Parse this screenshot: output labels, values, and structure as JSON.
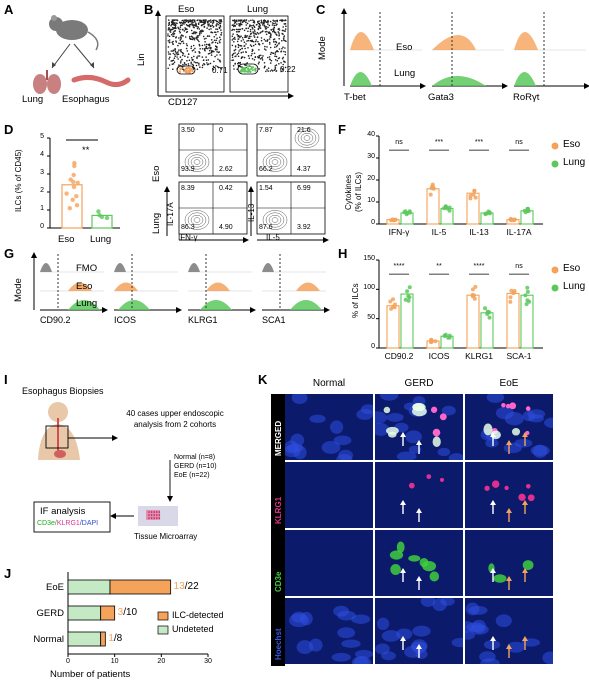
{
  "colors": {
    "eso": "#f5a25a",
    "lung": "#5cc85c",
    "grey": "#8c8c8c",
    "micro_bg": "#0b1a6b",
    "merged": "#ffffff",
    "klrg1": "#e0308f",
    "cd3e": "#3fcf3f",
    "hoechst": "#3a56e8"
  },
  "panels": {
    "A": "A",
    "B": "B",
    "C": "C",
    "D": "D",
    "E": "E",
    "F": "F",
    "G": "G",
    "H": "H",
    "I": "I",
    "J": "J",
    "K": "K"
  },
  "a": {
    "lung": "Lung",
    "esophagus": "Esophagus",
    "icons": [
      "mouse-icon",
      "lung-icon",
      "esophagus-icon"
    ]
  },
  "b": {
    "eso": "Eso",
    "lung": "Lung",
    "ylabel": "Lin",
    "xlabel": "CD127",
    "gate_eso": "0.71",
    "gate_lung": "0.22"
  },
  "c": {
    "ylabel": "Mode",
    "eso": "Eso",
    "lung": "Lung",
    "x1": "T-bet",
    "x2": "Gata3",
    "x3": "RoRγt"
  },
  "d": {
    "ylabel": "ILCs (% of CD45)",
    "sig": "**",
    "categories": [
      "Eso",
      "Lung"
    ],
    "values": [
      2.4,
      0.7
    ],
    "ticks": [
      "0",
      "1",
      "2",
      "3",
      "4",
      "5"
    ]
  },
  "e": {
    "row1": "Eso",
    "row2": "Lung",
    "y1": "IL-17A",
    "y2": "IL-13",
    "x1": "IFN-γ",
    "x2": "IL-5",
    "q": {
      "eso_l_ul": "3.50",
      "eso_l_ur": "0",
      "eso_l_ll": "93.9",
      "eso_l_lr": "2.62",
      "eso_r_ul": "7.87",
      "eso_r_ur": "21.6",
      "eso_r_ll": "66.2",
      "eso_r_lr": "4.37",
      "lung_l_ul": "8.39",
      "lung_l_ur": "0.42",
      "lung_l_ll": "86.3",
      "lung_l_lr": "4.90",
      "lung_r_ul": "1.54",
      "lung_r_ur": "6.99",
      "lung_r_ll": "87.6",
      "lung_r_lr": "3.92"
    }
  },
  "f": {
    "ylabel1": "Cytokines",
    "ylabel2": "(% of ILCs)",
    "ticks": [
      "0",
      "10",
      "20",
      "30",
      "40"
    ],
    "categories": [
      "IFN-γ",
      "IL-5",
      "IL-13",
      "IL-17A"
    ],
    "sig": [
      "ns",
      "***",
      "***",
      "ns"
    ],
    "legend": [
      "Eso",
      "Lung"
    ],
    "chart_data": {
      "type": "bar",
      "categories": [
        "IFN-γ",
        "IL-5",
        "IL-13",
        "IL-17A"
      ],
      "series": [
        {
          "name": "Eso",
          "values": [
            2,
            16,
            14,
            2
          ]
        },
        {
          "name": "Lung",
          "values": [
            5,
            7,
            5,
            6
          ]
        }
      ],
      "ylim": [
        0,
        40
      ]
    }
  },
  "g": {
    "ylabel": "Mode",
    "fmo": "FMO",
    "eso": "Eso",
    "lung": "Lung",
    "x": [
      "CD90.2",
      "ICOS",
      "KLRG1",
      "SCA1"
    ]
  },
  "h": {
    "ylabel": "% of ILCs",
    "ticks": [
      "0",
      "50",
      "100",
      "150"
    ],
    "categories": [
      "CD90.2",
      "ICOS",
      "KLRG1",
      "SCA-1"
    ],
    "sig": [
      "****",
      "**",
      "****",
      "ns"
    ],
    "legend": [
      "Eso",
      "Lung"
    ],
    "chart_data": {
      "type": "bar",
      "categories": [
        "CD90.2",
        "ICOS",
        "KLRG1",
        "SCA-1"
      ],
      "series": [
        {
          "name": "Eso",
          "values": [
            72,
            12,
            90,
            93
          ]
        },
        {
          "name": "Lung",
          "values": [
            92,
            20,
            60,
            90
          ]
        }
      ],
      "ylim": [
        0,
        150
      ]
    }
  },
  "i": {
    "title": "Esophagus Biopsies",
    "cases": "40 cases upper endoscopic analysis from 2 cohorts",
    "normal": "Normal (n=8)",
    "gerd": "GERD (n=10)",
    "eoe": "EoE (n=22)",
    "if": "IF analysis",
    "stain_a": "CD3e/",
    "stain_b": "KLRG1",
    "stain_c": "/DAPI",
    "tma": "Tissue Microarray"
  },
  "j": {
    "xlabel": "Number of patients",
    "ticks": [
      "0",
      "10",
      "20",
      "30"
    ],
    "legend": [
      "ILC-detected",
      "Undeteted"
    ],
    "chart_data": {
      "type": "bar",
      "categories": [
        "EoE",
        "GERD",
        "Normal"
      ],
      "series": [
        {
          "name": "ILC-detected",
          "values": [
            13,
            3,
            1
          ]
        },
        {
          "name": "Undeteted",
          "values": [
            9,
            7,
            7
          ]
        }
      ],
      "xlim": [
        0,
        30
      ]
    },
    "labels": {
      "eoe_a": "13",
      "eoe_b": "/22",
      "gerd_a": "3",
      "gerd_b": "/10",
      "norm_a": "1",
      "norm_b": "/8"
    }
  },
  "k": {
    "cols": [
      "Normal",
      "GERD",
      "EoE"
    ],
    "rows": [
      "MERGED",
      "KLRG1",
      "CD3e",
      "Hoechst"
    ]
  }
}
